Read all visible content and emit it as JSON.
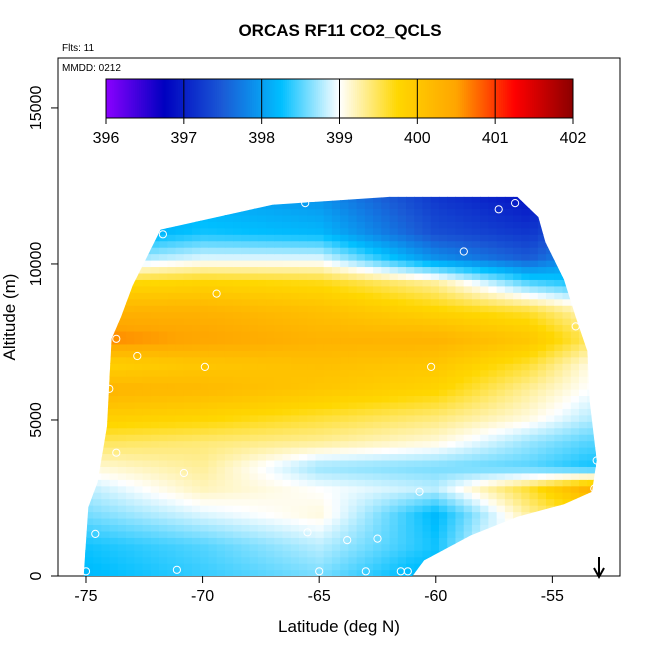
{
  "chart_data": {
    "type": "heatmap",
    "title": "ORCAS RF11 CO2_QCLS",
    "flights_note": "Flts: 11",
    "date_note": "MMDD: 0212",
    "xlabel": "Latitude (deg N)",
    "ylabel": "Altitude (m)",
    "xlim": [
      -76.2,
      -52.1
    ],
    "ylim": [
      0,
      16600
    ],
    "x_ticks": [
      -75,
      -70,
      -65,
      -60,
      -55
    ],
    "x_tick_labels": [
      "-75",
      "-70",
      "-65",
      "-60",
      "-55"
    ],
    "y_ticks": [
      0,
      5000,
      10000,
      15000
    ],
    "y_tick_labels": [
      "0",
      "5000",
      "10000",
      "15000"
    ],
    "grid": false,
    "colorbar": {
      "min": 396,
      "max": 402,
      "ticks": [
        396,
        397,
        398,
        399,
        400,
        401,
        402
      ],
      "tick_labels": [
        "396",
        "397",
        "398",
        "399",
        "400",
        "401",
        "402"
      ],
      "unit_position": "top inset",
      "colors": [
        "#8b00ff",
        "#0000c0",
        "#1a5bd6",
        "#00bfff",
        "#ffffff",
        "#ffd700",
        "#ffa500",
        "#ff0000",
        "#8b0000"
      ]
    },
    "domain_edge": [
      {
        "lat": -75.1,
        "alt": 0
      },
      {
        "lat": -74.9,
        "alt": 2200
      },
      {
        "lat": -74.5,
        "alt": 3000
      },
      {
        "lat": -74.1,
        "alt": 4800
      },
      {
        "lat": -73.9,
        "alt": 7600
      },
      {
        "lat": -73.5,
        "alt": 8300
      },
      {
        "lat": -73.0,
        "alt": 9300
      },
      {
        "lat": -72.4,
        "alt": 10200
      },
      {
        "lat": -71.8,
        "alt": 11100
      },
      {
        "lat": -67.0,
        "alt": 11900
      },
      {
        "lat": -62.0,
        "alt": 12150
      },
      {
        "lat": -56.5,
        "alt": 12150
      },
      {
        "lat": -55.6,
        "alt": 11500
      },
      {
        "lat": -55.3,
        "alt": 10700
      },
      {
        "lat": -54.5,
        "alt": 9500
      },
      {
        "lat": -54.0,
        "alt": 8300
      },
      {
        "lat": -53.5,
        "alt": 7200
      },
      {
        "lat": -53.4,
        "alt": 5600
      },
      {
        "lat": -53.1,
        "alt": 3700
      },
      {
        "lat": -53.3,
        "alt": 2700
      },
      {
        "lat": -54.5,
        "alt": 2300
      },
      {
        "lat": -56.5,
        "alt": 1900
      },
      {
        "lat": -58.5,
        "alt": 1300
      },
      {
        "lat": -60.5,
        "alt": 500
      },
      {
        "lat": -61.0,
        "alt": 0
      }
    ],
    "levels": [
      {
        "alt": 0,
        "values": [
          [
            -75,
            398.2
          ],
          [
            -70,
            398.4
          ],
          [
            -65,
            398.6
          ],
          [
            -61,
            398.2
          ]
        ]
      },
      {
        "alt": 1000,
        "values": [
          [
            -75,
            398.3
          ],
          [
            -70,
            398.5
          ],
          [
            -65,
            398.8
          ],
          [
            -60,
            398.3
          ],
          [
            -58,
            398.9
          ]
        ]
      },
      {
        "alt": 2000,
        "values": [
          [
            -75,
            398.6
          ],
          [
            -70,
            398.9
          ],
          [
            -65,
            399.1
          ],
          [
            -60,
            398.2
          ],
          [
            -56,
            399.3
          ],
          [
            -54,
            399.6
          ]
        ]
      },
      {
        "alt": 2800,
        "values": [
          [
            -75,
            398.8
          ],
          [
            -70,
            399.2
          ],
          [
            -65,
            399.0
          ],
          [
            -60,
            398.8
          ],
          [
            -56,
            399.6
          ],
          [
            -53.5,
            400.3
          ]
        ]
      },
      {
        "alt": 3500,
        "values": [
          [
            -75,
            399.1
          ],
          [
            -70,
            399.3
          ],
          [
            -65,
            398.7
          ],
          [
            -60,
            398.6
          ],
          [
            -56,
            398.5
          ],
          [
            -53.5,
            398.3
          ]
        ]
      },
      {
        "alt": 4300,
        "values": [
          [
            -75,
            399.5
          ],
          [
            -70,
            399.4
          ],
          [
            -65,
            399.3
          ],
          [
            -60,
            399.1
          ],
          [
            -56,
            398.7
          ],
          [
            -53.5,
            398.5
          ]
        ]
      },
      {
        "alt": 5100,
        "values": [
          [
            -75,
            399.9
          ],
          [
            -70,
            399.8
          ],
          [
            -65,
            399.6
          ],
          [
            -60,
            399.4
          ],
          [
            -56,
            399.1
          ],
          [
            -53.5,
            398.8
          ]
        ]
      },
      {
        "alt": 6000,
        "values": [
          [
            -75,
            400.3
          ],
          [
            -70,
            400.2
          ],
          [
            -65,
            400.0
          ],
          [
            -60,
            399.8
          ],
          [
            -56,
            399.3
          ],
          [
            -53.5,
            399.0
          ]
        ]
      },
      {
        "alt": 6800,
        "values": [
          [
            -75,
            399.8
          ],
          [
            -70,
            400.0
          ],
          [
            -65,
            400.1
          ],
          [
            -60,
            400.0
          ],
          [
            -56,
            399.6
          ],
          [
            -53.5,
            399.1
          ]
        ]
      },
      {
        "alt": 7600,
        "values": [
          [
            -75,
            400.7
          ],
          [
            -70,
            400.5
          ],
          [
            -65,
            400.3
          ],
          [
            -60,
            400.3
          ],
          [
            -56,
            400.0
          ],
          [
            -53.5,
            399.5
          ]
        ]
      },
      {
        "alt": 8500,
        "values": [
          [
            -75,
            400.3
          ],
          [
            -70,
            400.3
          ],
          [
            -65,
            400.1
          ],
          [
            -60,
            399.8
          ],
          [
            -56,
            399.6
          ],
          [
            -53.5,
            399.2
          ]
        ]
      },
      {
        "alt": 9400,
        "values": [
          [
            -75,
            399.7
          ],
          [
            -70,
            399.8
          ],
          [
            -65,
            399.7
          ],
          [
            -60,
            399.3
          ],
          [
            -56,
            398.5
          ],
          [
            -53.5,
            398.3
          ]
        ]
      },
      {
        "alt": 10200,
        "values": [
          [
            -75,
            398.6
          ],
          [
            -70,
            398.9
          ],
          [
            -65,
            398.9
          ],
          [
            -60,
            397.9
          ],
          [
            -56,
            397.5
          ],
          [
            -53.5,
            398.0
          ]
        ]
      },
      {
        "alt": 11000,
        "values": [
          [
            -75,
            398.0
          ],
          [
            -70,
            398.3
          ],
          [
            -65,
            398.2
          ],
          [
            -60,
            397.4
          ],
          [
            -56,
            397.2
          ],
          [
            -53.5,
            397.6
          ]
        ]
      },
      {
        "alt": 12200,
        "values": [
          [
            -75,
            398.0
          ],
          [
            -70,
            398.1
          ],
          [
            -65,
            397.9
          ],
          [
            -60,
            397.2
          ],
          [
            -56,
            396.9
          ],
          [
            -53.5,
            397.4
          ]
        ]
      }
    ],
    "sample_points": [
      {
        "lat": -75.0,
        "alt": 150
      },
      {
        "lat": -74.6,
        "alt": 1350
      },
      {
        "lat": -73.7,
        "alt": 3950
      },
      {
        "lat": -74.0,
        "alt": 6000
      },
      {
        "lat": -73.7,
        "alt": 7600
      },
      {
        "lat": -72.8,
        "alt": 7050
      },
      {
        "lat": -71.1,
        "alt": 200
      },
      {
        "lat": -70.8,
        "alt": 3300
      },
      {
        "lat": -69.9,
        "alt": 6700
      },
      {
        "lat": -69.4,
        "alt": 9050
      },
      {
        "lat": -71.7,
        "alt": 10950
      },
      {
        "lat": -65.6,
        "alt": 11950
      },
      {
        "lat": -65.5,
        "alt": 1400
      },
      {
        "lat": -65.0,
        "alt": 150
      },
      {
        "lat": -63.8,
        "alt": 1150
      },
      {
        "lat": -63.0,
        "alt": 150
      },
      {
        "lat": -62.5,
        "alt": 1200
      },
      {
        "lat": -61.5,
        "alt": 150
      },
      {
        "lat": -61.2,
        "alt": 150
      },
      {
        "lat": -60.7,
        "alt": 2700
      },
      {
        "lat": -60.2,
        "alt": 6700
      },
      {
        "lat": -58.8,
        "alt": 10400
      },
      {
        "lat": -57.3,
        "alt": 11750
      },
      {
        "lat": -56.6,
        "alt": 11950
      },
      {
        "lat": -54.0,
        "alt": 8000
      },
      {
        "lat": -53.1,
        "alt": 3700
      },
      {
        "lat": -53.2,
        "alt": 2800
      }
    ],
    "arrow_marker": {
      "lat": -53.0,
      "direction": "down"
    }
  }
}
